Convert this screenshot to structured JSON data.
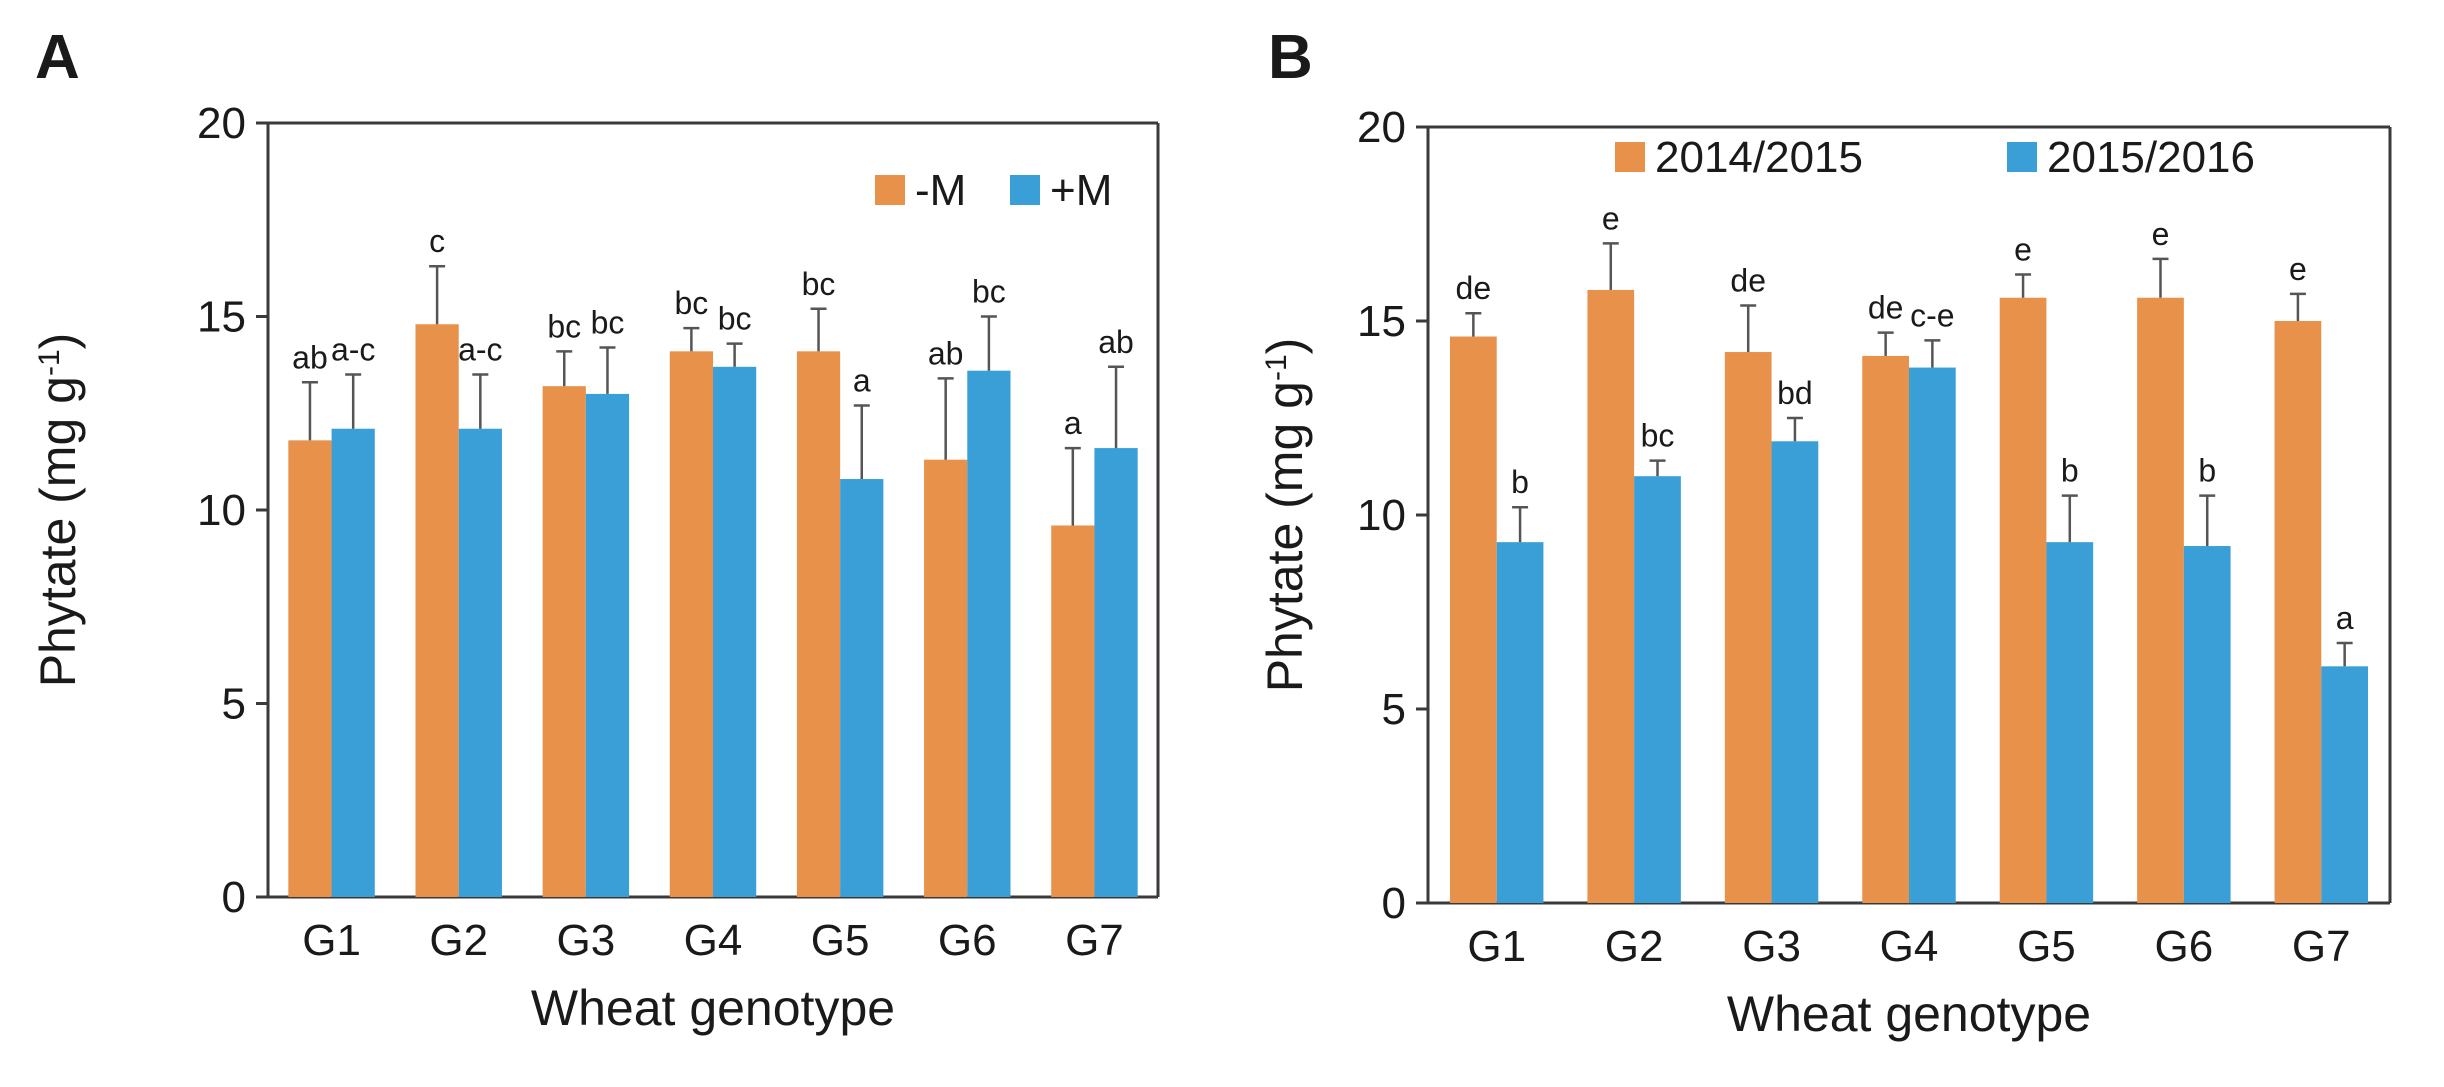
{
  "figure": {
    "panels": [
      "A",
      "B"
    ]
  },
  "colors": {
    "series1": "#e8914a",
    "series2": "#3a9fd6",
    "axis": "#3a3a3a",
    "errorbar": "#555555"
  },
  "chart_data": [
    {
      "panel": "A",
      "type": "bar",
      "title": "",
      "xlabel": "Wheat genotype",
      "ylabel": "Phytate (mg g",
      "ylabel_sup": "-1",
      "ylabel_end": ")",
      "ylim": [
        0,
        20
      ],
      "yticks": [
        "0",
        "5",
        "10",
        "15",
        "20"
      ],
      "legend_position": "top-right",
      "categories": [
        "G1",
        "G2",
        "G3",
        "G4",
        "G5",
        "G6",
        "G7"
      ],
      "series": [
        {
          "name": "-M",
          "values": [
            11.8,
            14.8,
            13.2,
            14.1,
            14.1,
            11.3,
            9.6
          ],
          "errors": [
            1.5,
            1.5,
            0.9,
            0.6,
            1.1,
            2.1,
            2.0
          ],
          "labels": [
            "ab",
            "c",
            "bc",
            "bc",
            "bc",
            "ab",
            "a"
          ]
        },
        {
          "name": "+M",
          "values": [
            12.1,
            12.1,
            13.0,
            13.7,
            10.8,
            13.6,
            11.6
          ],
          "errors": [
            1.4,
            1.4,
            1.2,
            0.6,
            1.9,
            1.4,
            2.1
          ],
          "labels": [
            "a-c",
            "a-c",
            "bc",
            "bc",
            "a",
            "bc",
            "ab"
          ]
        }
      ]
    },
    {
      "panel": "B",
      "type": "bar",
      "title": "",
      "xlabel": "Wheat genotype",
      "ylabel": "Phytate (mg g",
      "ylabel_sup": "-1",
      "ylabel_end": ")",
      "ylim": [
        0,
        20
      ],
      "yticks": [
        "0",
        "5",
        "10",
        "15",
        "20"
      ],
      "legend_position": "top",
      "categories": [
        "G1",
        "G2",
        "G3",
        "G4",
        "G5",
        "G6",
        "G7"
      ],
      "series": [
        {
          "name": "2014/2015",
          "values": [
            14.6,
            15.8,
            14.2,
            14.1,
            15.6,
            15.6,
            15.0
          ],
          "errors": [
            0.6,
            1.2,
            1.2,
            0.6,
            0.6,
            1.0,
            0.7
          ],
          "labels": [
            "de",
            "e",
            "de",
            "de",
            "e",
            "e",
            "e"
          ]
        },
        {
          "name": "2015/2016",
          "values": [
            9.3,
            11.0,
            11.9,
            13.8,
            9.3,
            9.2,
            6.1
          ],
          "errors": [
            0.9,
            0.4,
            0.6,
            0.7,
            1.2,
            1.3,
            0.6
          ],
          "labels": [
            "b",
            "bc",
            "bd",
            "c-e",
            "b",
            "b",
            "a"
          ]
        }
      ]
    }
  ]
}
